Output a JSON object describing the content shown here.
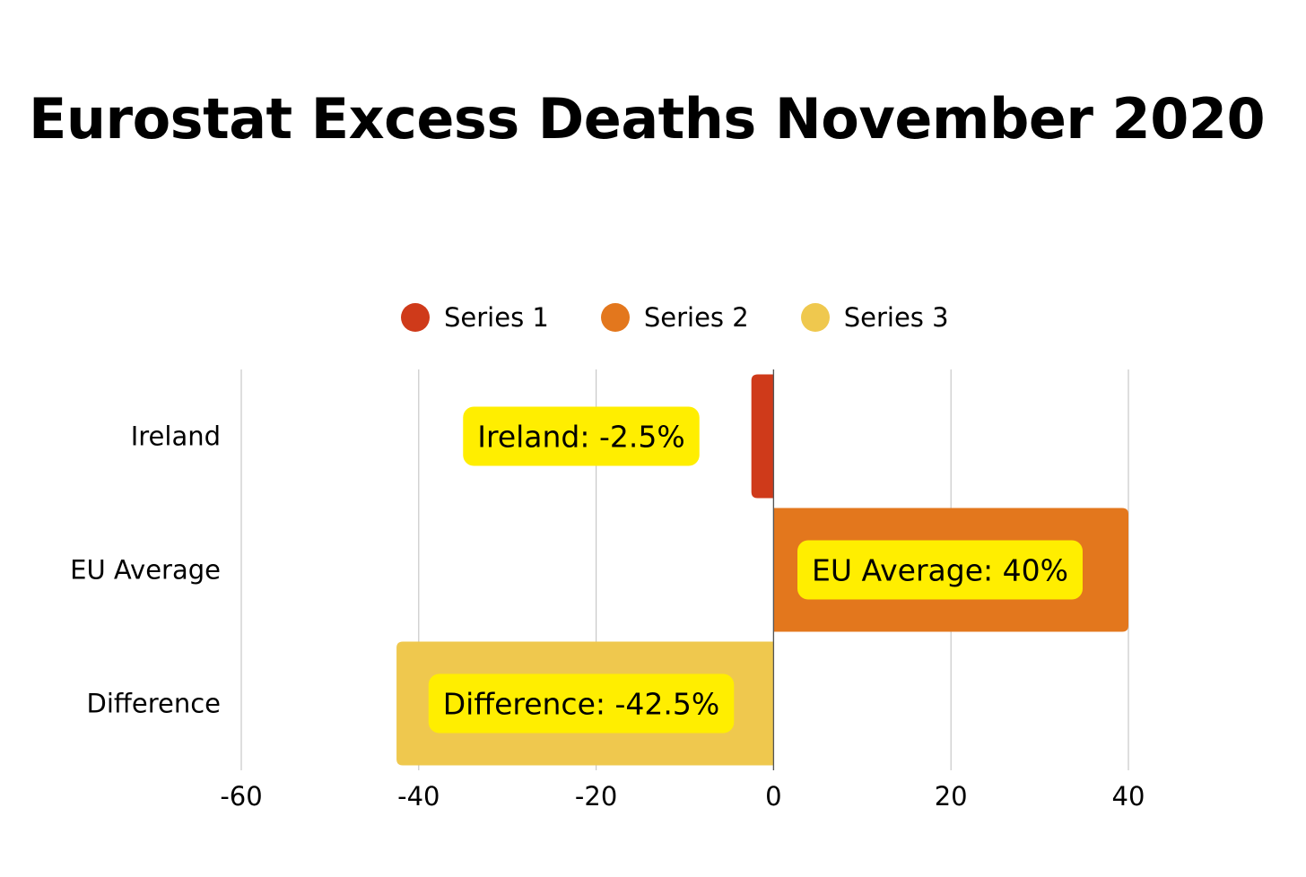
{
  "chart_data": {
    "type": "bar",
    "orientation": "horizontal",
    "title": "Eurostat Excess Deaths November 2020",
    "categories": [
      "Ireland",
      "EU Average",
      "Difference"
    ],
    "series": [
      {
        "name": "Series 1",
        "color": "#cf3a1a",
        "values": [
          -2.5,
          null,
          null
        ]
      },
      {
        "name": "Series 2",
        "color": "#e3771d",
        "values": [
          null,
          40,
          null
        ]
      },
      {
        "name": "Series 3",
        "color": "#efc84e",
        "values": [
          null,
          null,
          -42.5
        ]
      }
    ],
    "data_labels": [
      "Ireland: -2.5%",
      "EU Average: 40%",
      "Difference: -42.5%"
    ],
    "data_label_color": "#ffee00",
    "xlim": [
      -60,
      40
    ],
    "x_ticks": [
      -60,
      -40,
      -20,
      0,
      20,
      40
    ],
    "x_tick_labels": [
      "-60",
      "-40",
      "-20",
      "0",
      "20",
      "40"
    ],
    "xlabel": "",
    "ylabel": "",
    "grid": true,
    "legend_position": "top"
  }
}
